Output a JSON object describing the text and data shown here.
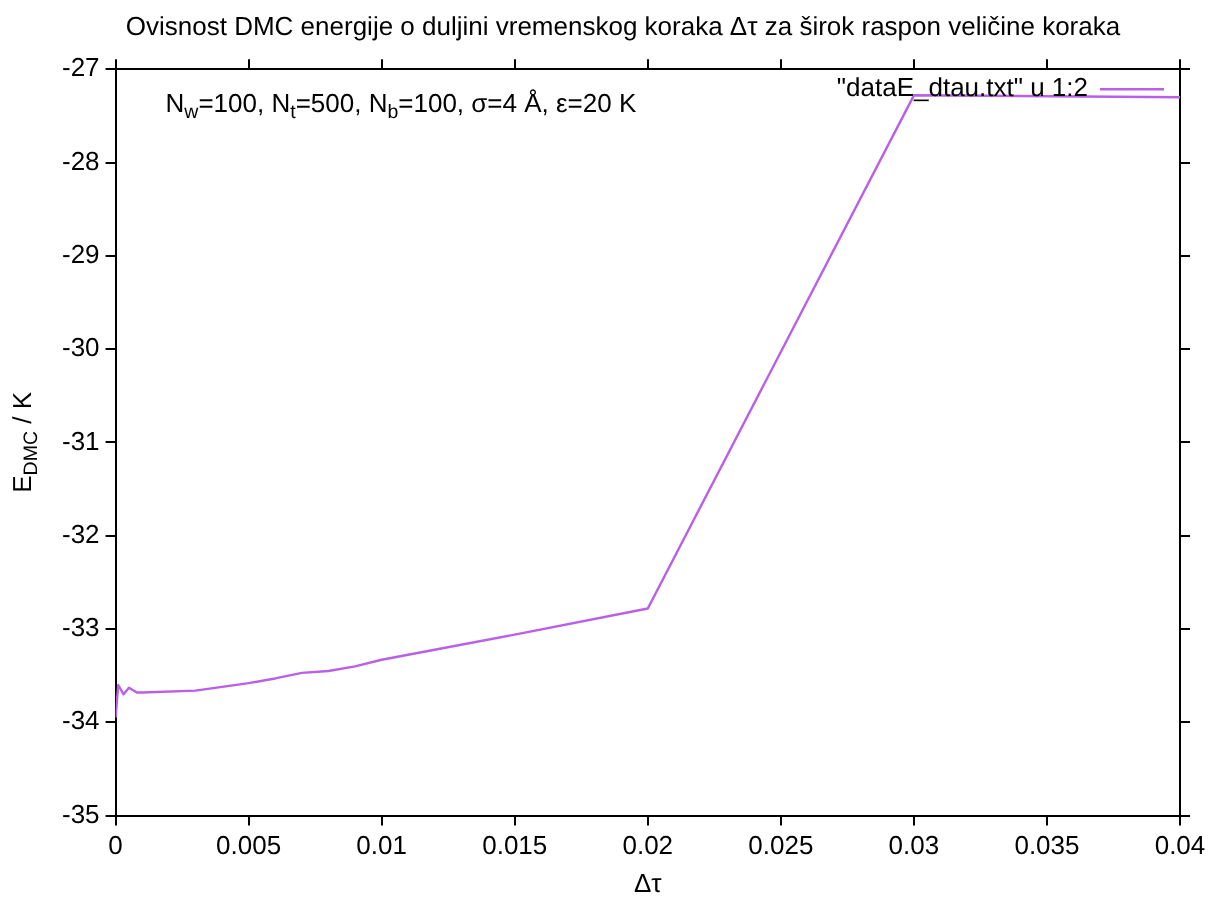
{
  "chart_data": {
    "type": "line",
    "title": "Ovisnost DMC energije o duljini vremenskog koraka Δτ za širok raspon veličine koraka",
    "xlabel": "Δτ",
    "ylabel": "E$_{DMC}$ / K",
    "annotations": [
      "N$_{w}$=100, N$_{t}$=500, N$_{b}$=100, σ=4 Å, ε=20 K"
    ],
    "x": [
      0,
      0.0001,
      0.0003,
      0.0005,
      0.0008,
      0.001,
      0.003,
      0.005,
      0.006,
      0.007,
      0.008,
      0.009,
      0.01,
      0.015,
      0.02,
      0.03,
      0.04
    ],
    "series": [
      {
        "name": "\"dataE_dtau.txt\" u 1:2",
        "color": "#b95fe8",
        "values": [
          -33.95,
          -33.6,
          -33.7,
          -33.63,
          -33.68,
          -33.68,
          -33.66,
          -33.58,
          -33.53,
          -33.47,
          -33.45,
          -33.4,
          -33.33,
          -33.06,
          -32.78,
          -27.28,
          -27.3
        ]
      }
    ],
    "xlim": [
      0,
      0.04
    ],
    "xticks": [
      0,
      0.005,
      0.01,
      0.015,
      0.02,
      0.025,
      0.03,
      0.035,
      0.04
    ],
    "ylim": [
      -35,
      -27
    ],
    "yticks": [
      -35,
      -34,
      -33,
      -32,
      -31,
      -30,
      -29,
      -28,
      -27
    ],
    "grid": false,
    "legend": "top right",
    "marker": "none",
    "line_style": "solid"
  }
}
